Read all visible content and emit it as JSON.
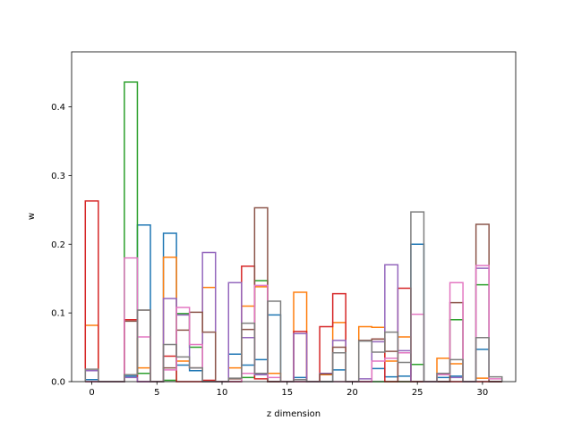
{
  "chart_data": {
    "type": "bar",
    "style": "step-histogram",
    "xlabel": "z dimension",
    "ylabel": "w",
    "xlim": [
      -1.55,
      32.55
    ],
    "ylim": [
      0,
      0.48
    ],
    "xticks": [
      0,
      5,
      10,
      15,
      20,
      25,
      30
    ],
    "yticks": [
      0.0,
      0.1,
      0.2,
      0.3,
      0.4
    ],
    "grid": false,
    "categories": [
      0,
      1,
      2,
      3,
      4,
      5,
      6,
      7,
      8,
      9,
      10,
      11,
      12,
      13,
      14,
      15,
      16,
      17,
      18,
      19,
      20,
      21,
      22,
      23,
      24,
      25,
      26,
      27,
      28,
      29,
      30,
      31
    ],
    "series": [
      {
        "color": "#1f77b4",
        "values": [
          0.003,
          0,
          0,
          0.008,
          0.228,
          0,
          0.216,
          0.024,
          0.016,
          0,
          0,
          0.04,
          0.024,
          0.032,
          0.097,
          0,
          0.006,
          0,
          0,
          0.017,
          0,
          0,
          0.019,
          0.007,
          0.008,
          0.2,
          0,
          0.006,
          0.008,
          0,
          0.047,
          0
        ]
      },
      {
        "color": "#ff7f0e",
        "values": [
          0.082,
          0,
          0,
          0.01,
          0.02,
          0,
          0.181,
          0.03,
          0.02,
          0.137,
          0,
          0.02,
          0.11,
          0.138,
          0.012,
          0,
          0.13,
          0,
          0.01,
          0.086,
          0,
          0.08,
          0.079,
          0.03,
          0.065,
          0,
          0,
          0.034,
          0.026,
          0,
          0.005,
          0
        ]
      },
      {
        "color": "#2ca02c",
        "values": [
          0,
          0,
          0,
          0.436,
          0.012,
          0,
          0.002,
          0.099,
          0.05,
          0,
          0,
          0,
          0.006,
          0.147,
          0,
          0,
          0,
          0,
          0,
          0,
          0,
          0,
          0,
          0,
          0,
          0.025,
          0,
          0,
          0.09,
          0,
          0.141,
          0
        ]
      },
      {
        "color": "#d62728",
        "values": [
          0.263,
          0,
          0,
          0.09,
          0,
          0,
          0.037,
          0,
          0,
          0.002,
          0,
          0,
          0.168,
          0.004,
          0,
          0,
          0.073,
          0,
          0.08,
          0.128,
          0,
          0,
          0.062,
          0,
          0.136,
          0,
          0,
          0,
          0,
          0,
          0,
          0
        ]
      },
      {
        "color": "#9467bd",
        "values": [
          0.016,
          0,
          0,
          0.006,
          0,
          0,
          0.121,
          0.097,
          0.02,
          0.188,
          0,
          0.144,
          0.064,
          0.01,
          0,
          0,
          0.07,
          0,
          0.012,
          0.06,
          0,
          0.004,
          0.058,
          0.17,
          0.045,
          0,
          0,
          0,
          0.006,
          0,
          0.165,
          0
        ]
      },
      {
        "color": "#8c564b",
        "values": [
          0,
          0,
          0,
          0.088,
          0.104,
          0,
          0.02,
          0.075,
          0.101,
          0.072,
          0,
          0.004,
          0.076,
          0.253,
          0,
          0,
          0,
          0,
          0.011,
          0.05,
          0,
          0.06,
          0.062,
          0.044,
          0,
          0,
          0,
          0,
          0.115,
          0,
          0.229,
          0
        ]
      },
      {
        "color": "#e377c2",
        "values": [
          0,
          0,
          0,
          0.18,
          0.065,
          0,
          0.017,
          0.108,
          0.054,
          0,
          0,
          0,
          0.012,
          0.14,
          0.006,
          0,
          0,
          0,
          0,
          0,
          0,
          0,
          0.03,
          0.034,
          0.042,
          0.098,
          0,
          0.01,
          0.144,
          0,
          0.169,
          0.004
        ]
      },
      {
        "color": "#7f7f7f",
        "values": [
          0.018,
          0,
          0,
          0.01,
          0.104,
          0,
          0.054,
          0.036,
          0.02,
          0,
          0,
          0.005,
          0.085,
          0.012,
          0.117,
          0,
          0.003,
          0,
          0,
          0.042,
          0,
          0.059,
          0.043,
          0.072,
          0.028,
          0.247,
          0,
          0.012,
          0.032,
          0,
          0.064,
          0.007
        ]
      }
    ]
  }
}
